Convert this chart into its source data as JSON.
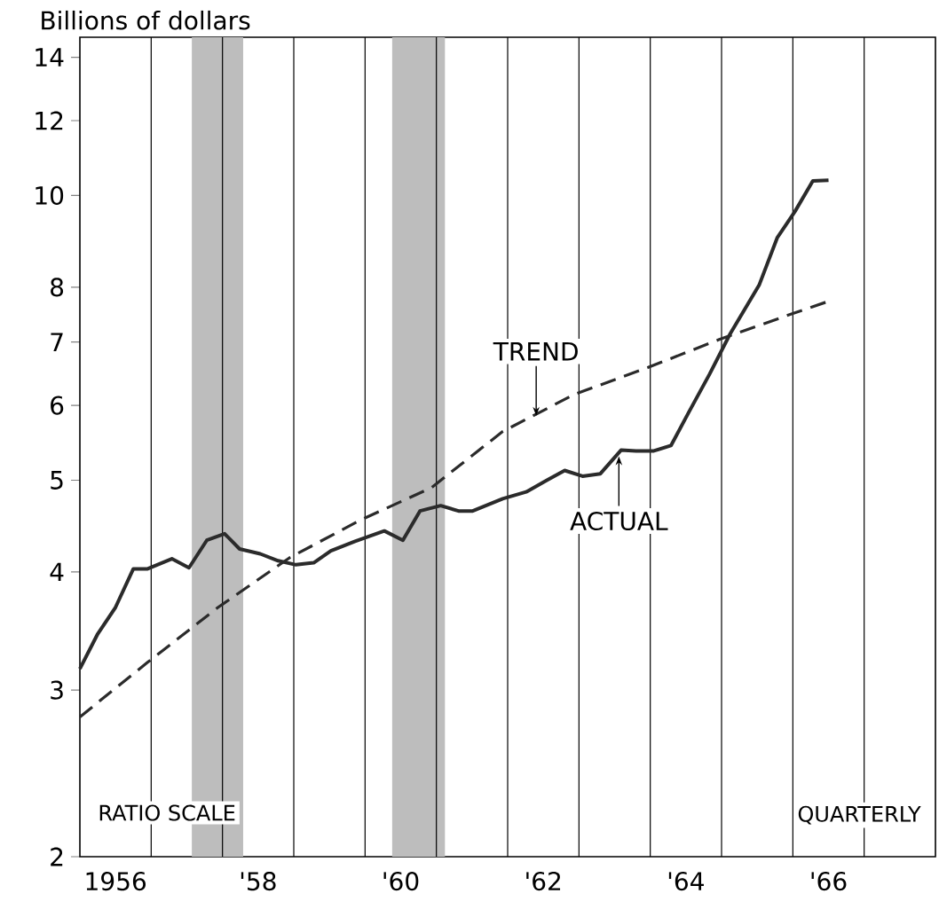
{
  "chart_data": {
    "type": "line",
    "ylabel": "Billions of dollars",
    "log": "y",
    "xlim": [
      1955.5,
      1967.5
    ],
    "ylim": [
      2,
      14.7
    ],
    "xticks": [
      1956,
      {
        "value": 1958,
        "label": "'58"
      },
      {
        "value": 1960,
        "label": "'60"
      },
      {
        "value": 1962,
        "label": "'62"
      },
      {
        "value": 1964,
        "label": "'64"
      },
      {
        "value": 1966,
        "label": "'66"
      }
    ],
    "yticks": [
      2,
      3,
      4,
      5,
      6,
      7,
      8,
      10,
      12,
      14
    ],
    "series": [
      {
        "color": "#2b2b2b",
        "line_style": "solid",
        "x": [
          1955.5,
          1955.75,
          1956.0,
          1956.25,
          1956.45,
          1956.79,
          1957.03,
          1957.28,
          1957.53,
          1957.74,
          1958.03,
          1958.28,
          1958.53,
          1958.78,
          1959.02,
          1959.36,
          1959.77,
          1960.03,
          1960.27,
          1960.56,
          1960.81,
          1961.01,
          1961.43,
          1961.76,
          1962.05,
          1962.3,
          1962.55,
          1962.8,
          1963.09,
          1963.3,
          1963.55,
          1963.79,
          1964.04,
          1964.33,
          1964.62,
          1965.03,
          1965.28,
          1965.53,
          1965.78,
          1966.0
        ],
        "values": [
          3.16,
          3.44,
          3.67,
          4.03,
          4.03,
          4.13,
          4.04,
          4.32,
          4.39,
          4.23,
          4.18,
          4.11,
          4.07,
          4.09,
          4.21,
          4.31,
          4.42,
          4.32,
          4.64,
          4.7,
          4.64,
          4.64,
          4.78,
          4.86,
          5.0,
          5.12,
          5.05,
          5.08,
          5.38,
          5.37,
          5.37,
          5.44,
          5.9,
          6.47,
          7.14,
          8.05,
          9.02,
          9.62,
          10.36,
          10.38
        ]
      },
      {
        "color": "#2b2b2b",
        "line_style": "dashed",
        "x": [
          1955.5,
          1956.45,
          1957.44,
          1958.44,
          1959.44,
          1960.43,
          1961.43,
          1962.43,
          1963.47,
          1964.46,
          1965.49,
          1966.02
        ],
        "values": [
          2.81,
          3.21,
          3.67,
          4.14,
          4.54,
          4.91,
          5.63,
          6.16,
          6.58,
          7.04,
          7.5,
          7.74
        ]
      }
    ],
    "bands": [
      {
        "axis": "x",
        "from": 1957.07,
        "to": 1957.79,
        "color": "#bdbdbd"
      },
      {
        "axis": "x",
        "from": 1959.88,
        "to": 1960.62,
        "color": "#bdbdbd"
      }
    ],
    "ref_lines": [
      {
        "axis": "x",
        "value": 1956.5
      },
      {
        "axis": "x",
        "value": 1957.5
      },
      {
        "axis": "x",
        "value": 1958.5
      },
      {
        "axis": "x",
        "value": 1959.5
      },
      {
        "axis": "x",
        "value": 1960.5
      },
      {
        "axis": "x",
        "value": 1961.5
      },
      {
        "axis": "x",
        "value": 1962.5
      },
      {
        "axis": "x",
        "value": 1963.5
      },
      {
        "axis": "x",
        "value": 1964.5
      },
      {
        "axis": "x",
        "value": 1965.5
      },
      {
        "axis": "x",
        "value": 1966.5
      }
    ],
    "annotations": [
      {
        "text": "TREND",
        "x": 1961.9,
        "y": 5.85
      },
      {
        "text": "ACTUAL",
        "x": 1963.06,
        "y": 5.3
      },
      "RATIO SCALE",
      "QUARTERLY"
    ]
  }
}
